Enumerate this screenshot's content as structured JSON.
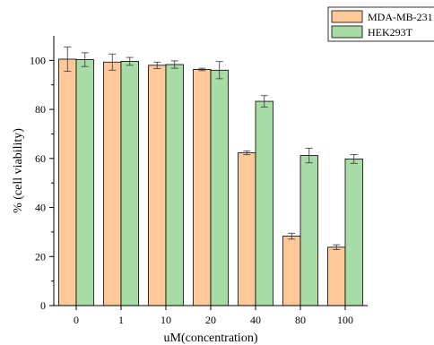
{
  "chart_data": {
    "type": "bar",
    "title": "",
    "xlabel": "uM(concentration)",
    "ylabel": "% (cell viability)",
    "categories": [
      "0",
      "1",
      "10",
      "20",
      "40",
      "80",
      "100"
    ],
    "ylim": [
      0,
      110
    ],
    "yticks": [
      0,
      20,
      40,
      60,
      80,
      100
    ],
    "grid": false,
    "legend_position": "top-right",
    "series": [
      {
        "name": "MDA-MB-231",
        "color": "#FFC999",
        "values": [
          100.5,
          99.3,
          98.0,
          96.3,
          62.3,
          28.3,
          23.8
        ],
        "errors": [
          5.0,
          3.3,
          1.3,
          0.5,
          0.8,
          1.2,
          1.0
        ]
      },
      {
        "name": "HEK293T",
        "color": "#A8DCA6",
        "values": [
          100.3,
          99.6,
          98.3,
          96.0,
          83.3,
          61.2,
          59.8
        ],
        "errors": [
          2.8,
          1.6,
          1.5,
          3.5,
          2.3,
          3.0,
          1.8
        ]
      }
    ]
  }
}
